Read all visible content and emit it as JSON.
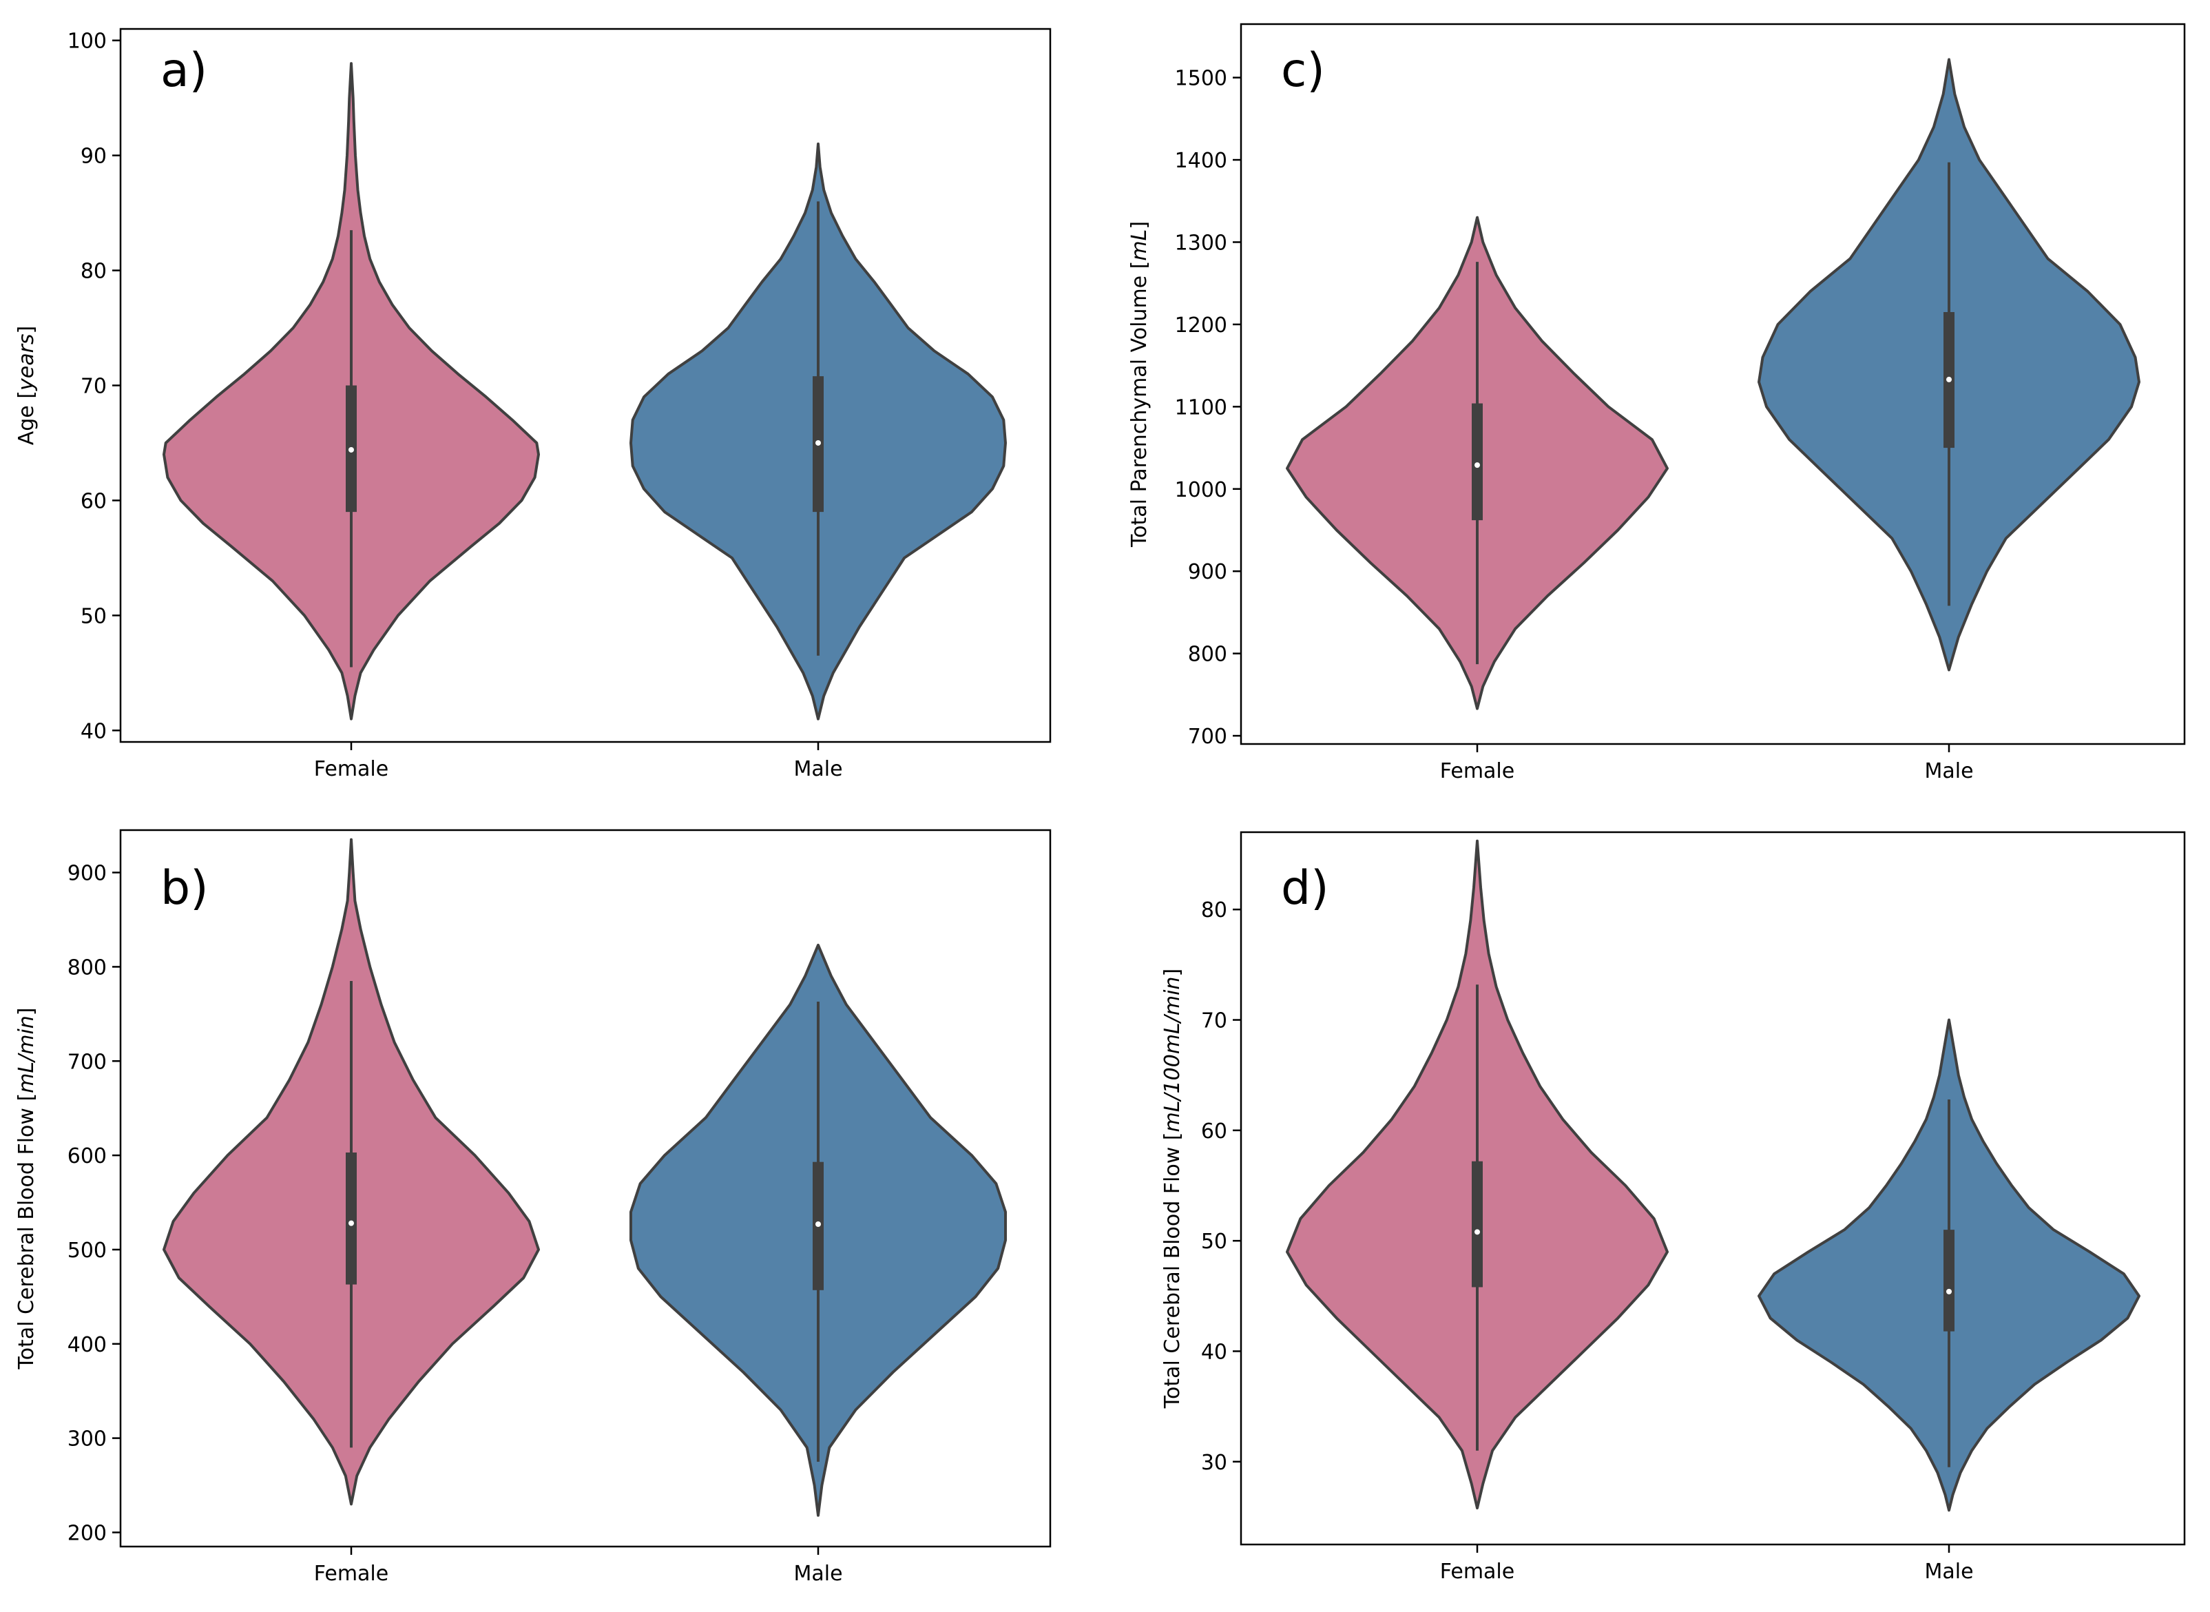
{
  "colors": {
    "female": "#cc7b95",
    "male": "#5482a8",
    "outline": "#404040",
    "box": "#404040",
    "median": "#ffffff",
    "frame": "#000000"
  },
  "chart_data": [
    {
      "id": "a",
      "panel_label": "a)",
      "type": "violin",
      "ylabel": [
        "Age [",
        "years",
        "]"
      ],
      "ylim": [
        39,
        101
      ],
      "yticks": [
        40,
        50,
        60,
        70,
        80,
        90,
        100
      ],
      "categories": [
        "Female",
        "Male"
      ],
      "series": [
        {
          "name": "Female",
          "color": "female",
          "median": 64.4,
          "q1": 59.0,
          "q3": 70.0,
          "whisker_low": 45.5,
          "whisker_high": 83.5,
          "min": 41.0,
          "max": 98.0,
          "density": [
            [
              41,
              0
            ],
            [
              43,
              0.02
            ],
            [
              45,
              0.05
            ],
            [
              47,
              0.12
            ],
            [
              50,
              0.25
            ],
            [
              53,
              0.42
            ],
            [
              56,
              0.64
            ],
            [
              58,
              0.79
            ],
            [
              60,
              0.91
            ],
            [
              62,
              0.98
            ],
            [
              64,
              1.0
            ],
            [
              65,
              0.99
            ],
            [
              67,
              0.86
            ],
            [
              69,
              0.72
            ],
            [
              71,
              0.57
            ],
            [
              73,
              0.43
            ],
            [
              75,
              0.31
            ],
            [
              77,
              0.22
            ],
            [
              79,
              0.15
            ],
            [
              81,
              0.1
            ],
            [
              83,
              0.07
            ],
            [
              85,
              0.05
            ],
            [
              87,
              0.035
            ],
            [
              90,
              0.022
            ],
            [
              93,
              0.014
            ],
            [
              95,
              0.01
            ],
            [
              98,
              0
            ]
          ]
        },
        {
          "name": "Male",
          "color": "male",
          "median": 65.0,
          "q1": 59.0,
          "q3": 70.8,
          "whisker_low": 46.5,
          "whisker_high": 86.0,
          "min": 41.0,
          "max": 91.0,
          "density": [
            [
              41,
              0
            ],
            [
              43,
              0.03
            ],
            [
              45,
              0.08
            ],
            [
              47,
              0.15
            ],
            [
              49,
              0.22
            ],
            [
              51,
              0.3
            ],
            [
              53,
              0.38
            ],
            [
              55,
              0.46
            ],
            [
              57,
              0.64
            ],
            [
              59,
              0.82
            ],
            [
              61,
              0.93
            ],
            [
              63,
              0.99
            ],
            [
              65,
              1.0
            ],
            [
              67,
              0.99
            ],
            [
              69,
              0.93
            ],
            [
              71,
              0.8
            ],
            [
              73,
              0.62
            ],
            [
              75,
              0.48
            ],
            [
              77,
              0.39
            ],
            [
              79,
              0.3
            ],
            [
              81,
              0.2
            ],
            [
              83,
              0.13
            ],
            [
              85,
              0.07
            ],
            [
              87,
              0.03
            ],
            [
              89,
              0.01
            ],
            [
              91,
              0
            ]
          ]
        }
      ]
    },
    {
      "id": "b",
      "panel_label": "b)",
      "type": "violin",
      "ylabel": [
        "Total Cerebral Blood Flow [",
        "mL/min",
        "]"
      ],
      "ylim": [
        185,
        945
      ],
      "yticks": [
        200,
        300,
        400,
        500,
        600,
        700,
        800,
        900
      ],
      "categories": [
        "Female",
        "Male"
      ],
      "series": [
        {
          "name": "Female",
          "color": "female",
          "median": 528,
          "q1": 463,
          "q3": 603,
          "whisker_low": 290,
          "whisker_high": 785,
          "min": 230,
          "max": 935,
          "density": [
            [
              230,
              0
            ],
            [
              260,
              0.03
            ],
            [
              290,
              0.1
            ],
            [
              320,
              0.2
            ],
            [
              360,
              0.36
            ],
            [
              400,
              0.54
            ],
            [
              440,
              0.76
            ],
            [
              470,
              0.92
            ],
            [
              500,
              1.0
            ],
            [
              530,
              0.95
            ],
            [
              560,
              0.84
            ],
            [
              600,
              0.66
            ],
            [
              640,
              0.45
            ],
            [
              680,
              0.33
            ],
            [
              720,
              0.23
            ],
            [
              760,
              0.16
            ],
            [
              800,
              0.1
            ],
            [
              840,
              0.05
            ],
            [
              870,
              0.02
            ],
            [
              900,
              0.01
            ],
            [
              935,
              0
            ]
          ]
        },
        {
          "name": "Male",
          "color": "male",
          "median": 527,
          "q1": 457,
          "q3": 593,
          "whisker_low": 275,
          "whisker_high": 763,
          "min": 218,
          "max": 823,
          "density": [
            [
              218,
              0
            ],
            [
              250,
              0.02
            ],
            [
              290,
              0.06
            ],
            [
              330,
              0.2
            ],
            [
              370,
              0.4
            ],
            [
              410,
              0.62
            ],
            [
              450,
              0.84
            ],
            [
              480,
              0.96
            ],
            [
              510,
              1.0
            ],
            [
              540,
              1.0
            ],
            [
              570,
              0.95
            ],
            [
              600,
              0.82
            ],
            [
              640,
              0.6
            ],
            [
              680,
              0.45
            ],
            [
              720,
              0.3
            ],
            [
              760,
              0.15
            ],
            [
              790,
              0.07
            ],
            [
              823,
              0
            ]
          ]
        }
      ]
    },
    {
      "id": "c",
      "panel_label": "c)",
      "type": "violin",
      "ylabel": [
        "Total Parenchymal Volume  [",
        "mL",
        "]"
      ],
      "ylim": [
        690,
        1565
      ],
      "yticks": [
        700,
        800,
        900,
        1000,
        1100,
        1200,
        1300,
        1400,
        1500
      ],
      "categories": [
        "Female",
        "Male"
      ],
      "series": [
        {
          "name": "Female",
          "color": "female",
          "median": 1029,
          "q1": 962,
          "q3": 1104,
          "whisker_low": 787,
          "whisker_high": 1276,
          "min": 733,
          "max": 1330,
          "density": [
            [
              733,
              0
            ],
            [
              760,
              0.03
            ],
            [
              790,
              0.09
            ],
            [
              830,
              0.2
            ],
            [
              870,
              0.37
            ],
            [
              910,
              0.56
            ],
            [
              950,
              0.74
            ],
            [
              990,
              0.9
            ],
            [
              1025,
              1.0
            ],
            [
              1060,
              0.92
            ],
            [
              1100,
              0.69
            ],
            [
              1140,
              0.51
            ],
            [
              1180,
              0.34
            ],
            [
              1220,
              0.2
            ],
            [
              1260,
              0.1
            ],
            [
              1300,
              0.03
            ],
            [
              1330,
              0
            ]
          ]
        },
        {
          "name": "Male",
          "color": "male",
          "median": 1133,
          "q1": 1050,
          "q3": 1215,
          "whisker_low": 858,
          "whisker_high": 1397,
          "min": 780,
          "max": 1522,
          "density": [
            [
              780,
              0
            ],
            [
              820,
              0.05
            ],
            [
              860,
              0.12
            ],
            [
              900,
              0.2
            ],
            [
              940,
              0.3
            ],
            [
              980,
              0.48
            ],
            [
              1020,
              0.66
            ],
            [
              1060,
              0.84
            ],
            [
              1100,
              0.96
            ],
            [
              1130,
              1.0
            ],
            [
              1160,
              0.98
            ],
            [
              1200,
              0.9
            ],
            [
              1240,
              0.73
            ],
            [
              1280,
              0.52
            ],
            [
              1320,
              0.4
            ],
            [
              1360,
              0.28
            ],
            [
              1400,
              0.16
            ],
            [
              1440,
              0.08
            ],
            [
              1480,
              0.03
            ],
            [
              1522,
              0
            ]
          ]
        }
      ]
    },
    {
      "id": "d",
      "panel_label": "d)",
      "type": "violin",
      "ylabel": [
        "Total Cerebral Blood Flow [",
        "mL/100mL/min",
        "]"
      ],
      "ylim": [
        22.5,
        87
      ],
      "yticks": [
        30,
        40,
        50,
        60,
        70,
        80
      ],
      "categories": [
        "Female",
        "Male"
      ],
      "series": [
        {
          "name": "Female",
          "color": "female",
          "median": 50.8,
          "q1": 45.8,
          "q3": 57.2,
          "whisker_low": 31.0,
          "whisker_high": 73.2,
          "min": 25.8,
          "max": 86.2,
          "density": [
            [
              25.8,
              0
            ],
            [
              28,
              0.03
            ],
            [
              31,
              0.08
            ],
            [
              34,
              0.2
            ],
            [
              37,
              0.38
            ],
            [
              40,
              0.56
            ],
            [
              43,
              0.74
            ],
            [
              46,
              0.9
            ],
            [
              49,
              1.0
            ],
            [
              52,
              0.93
            ],
            [
              55,
              0.78
            ],
            [
              58,
              0.6
            ],
            [
              61,
              0.45
            ],
            [
              64,
              0.33
            ],
            [
              67,
              0.24
            ],
            [
              70,
              0.16
            ],
            [
              73,
              0.1
            ],
            [
              76,
              0.06
            ],
            [
              79,
              0.035
            ],
            [
              82,
              0.018
            ],
            [
              86.2,
              0
            ]
          ]
        },
        {
          "name": "Male",
          "color": "male",
          "median": 45.4,
          "q1": 41.8,
          "q3": 51.0,
          "whisker_low": 29.5,
          "whisker_high": 62.8,
          "min": 25.6,
          "max": 70.0,
          "density": [
            [
              25.6,
              0
            ],
            [
              27,
              0.02
            ],
            [
              29,
              0.06
            ],
            [
              31,
              0.12
            ],
            [
              33,
              0.2
            ],
            [
              35,
              0.32
            ],
            [
              37,
              0.45
            ],
            [
              39,
              0.62
            ],
            [
              41,
              0.8
            ],
            [
              43,
              0.94
            ],
            [
              45,
              1.0
            ],
            [
              47,
              0.92
            ],
            [
              49,
              0.74
            ],
            [
              51,
              0.55
            ],
            [
              53,
              0.42
            ],
            [
              55,
              0.33
            ],
            [
              57,
              0.25
            ],
            [
              59,
              0.18
            ],
            [
              61,
              0.12
            ],
            [
              63,
              0.08
            ],
            [
              65,
              0.05
            ],
            [
              67,
              0.03
            ],
            [
              70,
              0
            ]
          ]
        }
      ]
    }
  ]
}
